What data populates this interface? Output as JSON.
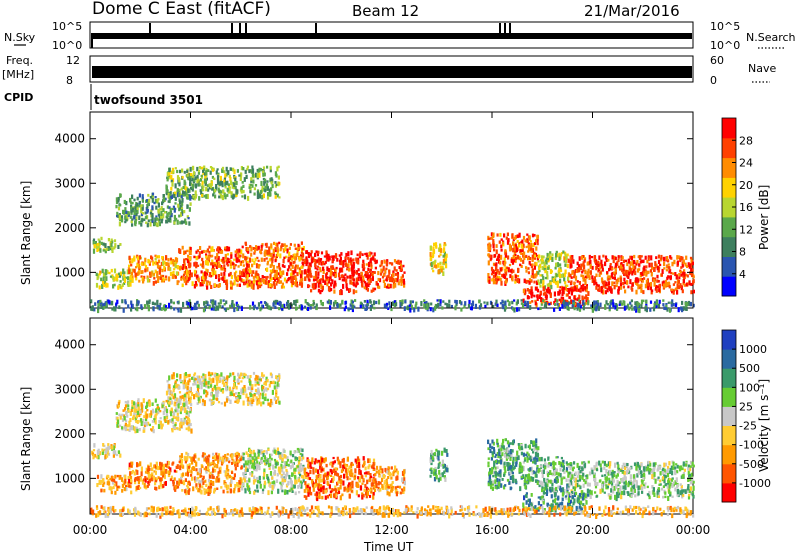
{
  "header": {
    "station": "Dome C East (fitACF)",
    "beam": "Beam 12",
    "date": "21/Mar/2016"
  },
  "status_panels": {
    "nsky_label": "N.Sky",
    "nsky_ticks": [
      "10^5",
      "10^0"
    ],
    "nsearch_label": "N.Search",
    "nsearch_ticks": [
      "10^5",
      "10^0"
    ],
    "freq_label": "Freq.",
    "freq_unit": "[MHz]",
    "freq_ticks": [
      "12",
      "8"
    ],
    "nave_label": "Nave",
    "nave_ticks": [
      "60",
      "0"
    ],
    "cpid_label": "CPID",
    "cpid_value": "twofsound 3501"
  },
  "axes": {
    "xlabel": "Time UT",
    "x_ticks": [
      "00:00",
      "04:00",
      "08:00",
      "12:00",
      "16:00",
      "20:00",
      "00:00"
    ],
    "ylabel": "Slant Range [km]",
    "y_ticks": [
      "1000",
      "2000",
      "3000",
      "4000"
    ]
  },
  "colors": {
    "power_scale": [
      "#0000ff",
      "#2a55b0",
      "#3d7f5e",
      "#5aa84a",
      "#b8d630",
      "#ffd200",
      "#ff8c00",
      "#ff4000",
      "#ff0000"
    ],
    "velocity_scale": [
      "#ff0000",
      "#ff5500",
      "#ff9a00",
      "#ffcc33",
      "#c8c8c8",
      "#66cc33",
      "#3a9a6a",
      "#2a6aa0",
      "#2040c0"
    ]
  },
  "chart_data": [
    {
      "type": "heatmap",
      "title": "",
      "quantity": "Power",
      "xlabel": "Time UT",
      "ylabel": "Slant Range [km]",
      "xlim": [
        0,
        24
      ],
      "ylim": [
        200,
        4600
      ],
      "colorbar_label": "Power [dB]",
      "colorbar_ticks": [
        "4",
        "8",
        "12",
        "16",
        "20",
        "24",
        "28"
      ],
      "colorbar_range": [
        0,
        32
      ],
      "regions": [
        {
          "t": [
            0.0,
            1.2
          ],
          "r": [
            1500,
            1800
          ],
          "level": 0.45
        },
        {
          "t": [
            0.2,
            1.6
          ],
          "r": [
            700,
            1100
          ],
          "level": 0.5
        },
        {
          "t": [
            1.5,
            3.5
          ],
          "r": [
            800,
            1400
          ],
          "level": 0.7
        },
        {
          "t": [
            3.5,
            6.0
          ],
          "r": [
            700,
            1600
          ],
          "level": 0.8
        },
        {
          "t": [
            6.0,
            8.5
          ],
          "r": [
            700,
            1700
          ],
          "level": 0.78
        },
        {
          "t": [
            8.5,
            11.3
          ],
          "r": [
            600,
            1500
          ],
          "level": 0.92
        },
        {
          "t": [
            11.3,
            12.5
          ],
          "r": [
            700,
            1300
          ],
          "level": 0.85
        },
        {
          "t": [
            13.5,
            14.2
          ],
          "r": [
            1000,
            1700
          ],
          "level": 0.6
        },
        {
          "t": [
            15.8,
            17.8
          ],
          "r": [
            800,
            1900
          ],
          "level": 0.82
        },
        {
          "t": [
            17.8,
            19.0
          ],
          "r": [
            700,
            1500
          ],
          "level": 0.5
        },
        {
          "t": [
            19.0,
            24.0
          ],
          "r": [
            600,
            1400
          ],
          "level": 0.85
        },
        {
          "t": [
            17.2,
            19.8
          ],
          "r": [
            300,
            700
          ],
          "level": 0.9
        },
        {
          "t": [
            3.0,
            7.5
          ],
          "r": [
            2700,
            3400
          ],
          "level": 0.4
        },
        {
          "t": [
            1.0,
            4.0
          ],
          "r": [
            2100,
            2800
          ],
          "level": 0.35
        },
        {
          "t": [
            0.0,
            24.0
          ],
          "r": [
            200,
            400
          ],
          "level": 0.25
        }
      ]
    },
    {
      "type": "heatmap",
      "title": "",
      "quantity": "Velocity",
      "xlabel": "Time UT",
      "ylabel": "Slant Range [km]",
      "xlim": [
        0,
        24
      ],
      "ylim": [
        200,
        4600
      ],
      "colorbar_label": "Velocity [m s⁻¹]",
      "colorbar_ticks": [
        "-1000",
        "-500",
        "-100",
        "-25",
        "25",
        "100",
        "500",
        "1000"
      ],
      "regions": [
        {
          "t": [
            0.0,
            1.2
          ],
          "r": [
            1500,
            1800
          ],
          "level": 0.45
        },
        {
          "t": [
            0.2,
            1.6
          ],
          "r": [
            700,
            1100
          ],
          "level": 0.3
        },
        {
          "t": [
            1.5,
            3.5
          ],
          "r": [
            800,
            1400
          ],
          "level": 0.25
        },
        {
          "t": [
            3.5,
            6.0
          ],
          "r": [
            700,
            1600
          ],
          "level": 0.3
        },
        {
          "t": [
            6.0,
            8.5
          ],
          "r": [
            700,
            1700
          ],
          "level": 0.55
        },
        {
          "t": [
            8.5,
            11.3
          ],
          "r": [
            600,
            1500
          ],
          "level": 0.2
        },
        {
          "t": [
            11.3,
            12.5
          ],
          "r": [
            700,
            1300
          ],
          "level": 0.3
        },
        {
          "t": [
            13.5,
            14.2
          ],
          "r": [
            1000,
            1700
          ],
          "level": 0.65
        },
        {
          "t": [
            15.8,
            17.8
          ],
          "r": [
            800,
            1900
          ],
          "level": 0.7
        },
        {
          "t": [
            17.8,
            19.0
          ],
          "r": [
            700,
            1500
          ],
          "level": 0.65
        },
        {
          "t": [
            19.0,
            24.0
          ],
          "r": [
            600,
            1400
          ],
          "level": 0.6
        },
        {
          "t": [
            17.2,
            19.8
          ],
          "r": [
            300,
            700
          ],
          "level": 0.72
        },
        {
          "t": [
            3.0,
            7.5
          ],
          "r": [
            2700,
            3400
          ],
          "level": 0.45
        },
        {
          "t": [
            1.0,
            4.0
          ],
          "r": [
            2100,
            2800
          ],
          "level": 0.45
        },
        {
          "t": [
            0.0,
            24.0
          ],
          "r": [
            200,
            400
          ],
          "level": 0.35
        }
      ]
    }
  ]
}
